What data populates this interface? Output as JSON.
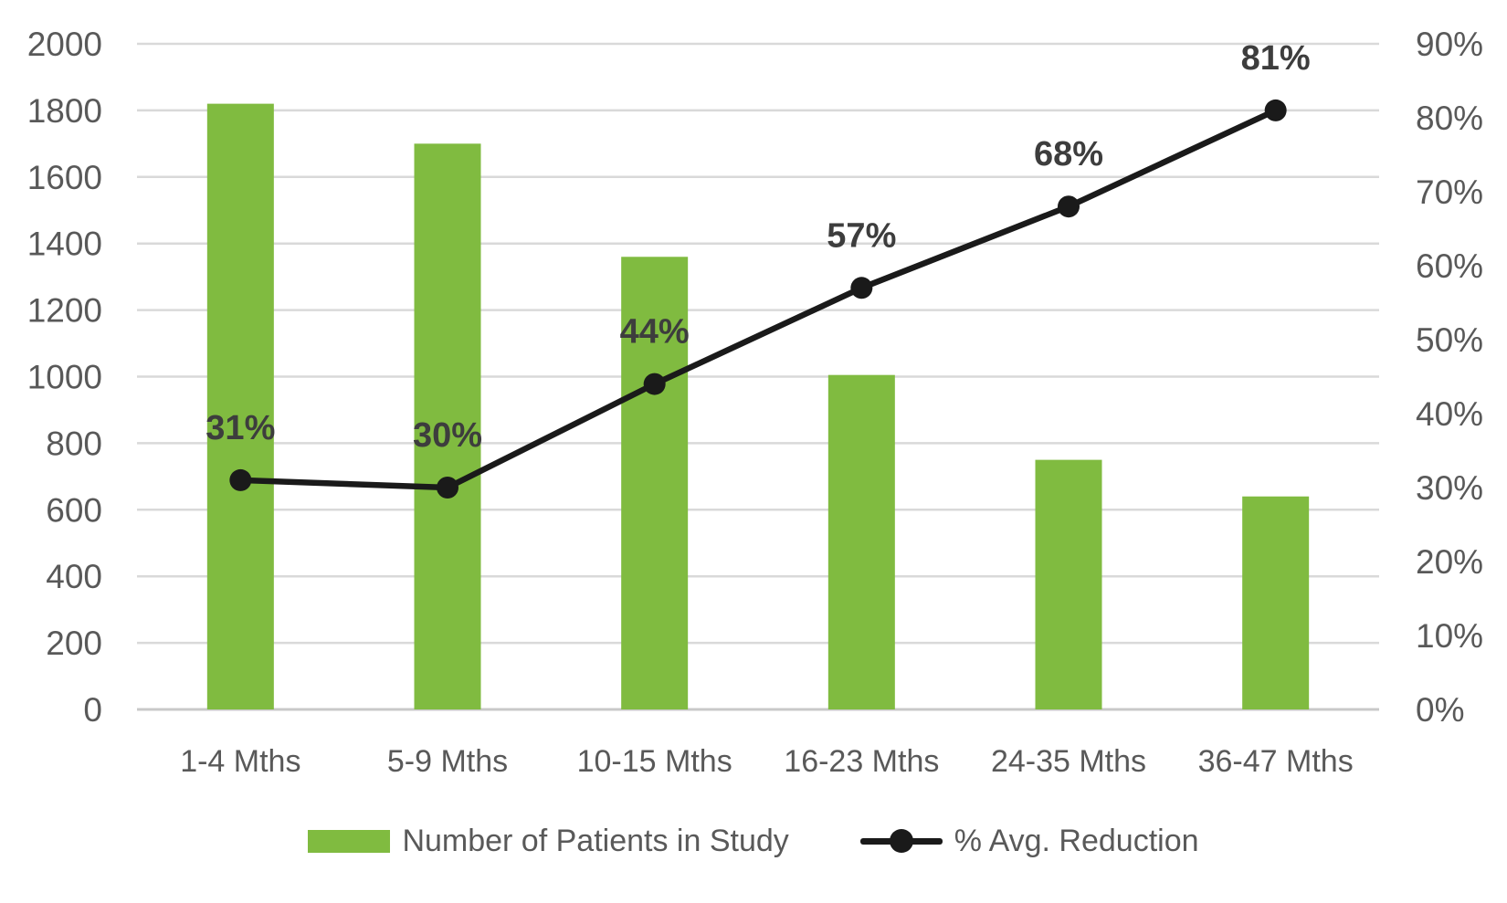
{
  "chart_data": {
    "type": "combo-bar-line",
    "categories": [
      "1-4 Mths",
      "5-9 Mths",
      "10-15 Mths",
      "16-23 Mths",
      "24-35 Mths",
      "36-47 Mths"
    ],
    "series": [
      {
        "name": "Number of Patients in Study",
        "type": "bar",
        "axis": "left",
        "color": "#80BB40",
        "values": [
          1820,
          1700,
          1360,
          1005,
          750,
          640
        ]
      },
      {
        "name": "% Avg. Reduction",
        "type": "line",
        "axis": "right",
        "color": "#1A1A1A",
        "values": [
          31,
          30,
          44,
          57,
          68,
          81
        ],
        "labels": [
          "31%",
          "30%",
          "44%",
          "57%",
          "68%",
          "81%"
        ]
      }
    ],
    "left_axis": {
      "min": 0,
      "max": 2000,
      "step": 200,
      "tick_labels": [
        "0",
        "200",
        "400",
        "600",
        "800",
        "1000",
        "1200",
        "1400",
        "1600",
        "1800",
        "2000"
      ]
    },
    "right_axis": {
      "min": 0,
      "max": 90,
      "step": 10,
      "tick_labels": [
        "0%",
        "10%",
        "20%",
        "30%",
        "40%",
        "50%",
        "60%",
        "70%",
        "80%",
        "90%"
      ]
    },
    "grid": true,
    "legend_position": "bottom",
    "colors": {
      "grid": "#D9D9D9",
      "axis_line": "#C9C9C9",
      "tick_text": "#595959",
      "data_label_text": "#3D3D3D",
      "background": "#FFFFFF"
    }
  }
}
